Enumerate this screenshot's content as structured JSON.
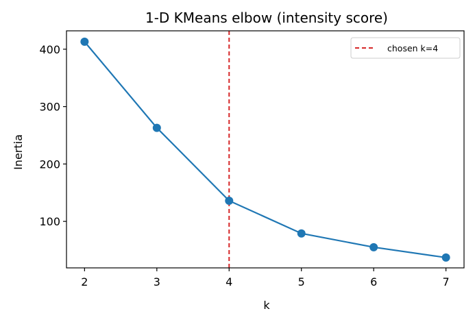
{
  "chart_data": {
    "type": "line",
    "title": "1-D KMeans elbow (intensity score)",
    "xlabel": "k",
    "ylabel": "Inertia",
    "x": [
      2,
      3,
      4,
      5,
      6,
      7
    ],
    "series": [
      {
        "name": "inertia",
        "values": [
          413,
          263,
          136,
          79,
          55,
          37
        ],
        "color": "#1f77b4",
        "marker": "circle"
      }
    ],
    "xticks": [
      "2",
      "3",
      "4",
      "5",
      "6",
      "7"
    ],
    "yticks": [
      "100",
      "200",
      "300",
      "400"
    ],
    "xlim": [
      1.75,
      7.25
    ],
    "ylim": [
      19,
      432
    ],
    "annotations": [
      {
        "type": "vline",
        "x": 4,
        "style": "dashed",
        "color": "#d62728",
        "label": "chosen k=4"
      }
    ],
    "legend": {
      "position": "upper right",
      "entries": [
        "chosen k=4"
      ]
    },
    "grid": false
  }
}
